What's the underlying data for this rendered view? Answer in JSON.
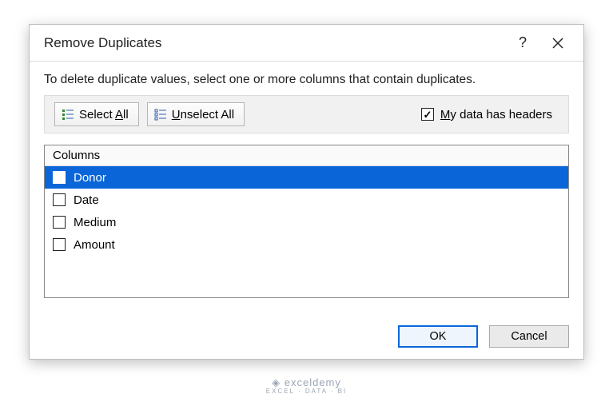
{
  "dialog": {
    "title": "Remove Duplicates",
    "instruction": "To delete duplicate values, select one or more columns that contain duplicates."
  },
  "toolbar": {
    "select_all_label": "Select All",
    "select_all_hotkey_char": "A",
    "unselect_all_label": "Unselect All",
    "unselect_all_hotkey_char": "U",
    "headers_label": "My data has headers",
    "headers_hotkey_char": "M",
    "headers_checked": true
  },
  "list": {
    "header": "Columns",
    "items": [
      {
        "label": "Donor",
        "checked": true,
        "selected": true
      },
      {
        "label": "Date",
        "checked": false,
        "selected": false
      },
      {
        "label": "Medium",
        "checked": false,
        "selected": false
      },
      {
        "label": "Amount",
        "checked": false,
        "selected": false
      }
    ]
  },
  "buttons": {
    "ok": "OK",
    "cancel": "Cancel"
  },
  "colors": {
    "selection": "#0a66d8",
    "primary_border": "#0a66d8",
    "dialog_border": "#bfbfbf",
    "toolbar_bg": "#f1f1f1"
  },
  "watermark": {
    "brand": "exceldemy",
    "tagline": "EXCEL · DATA · BI"
  }
}
